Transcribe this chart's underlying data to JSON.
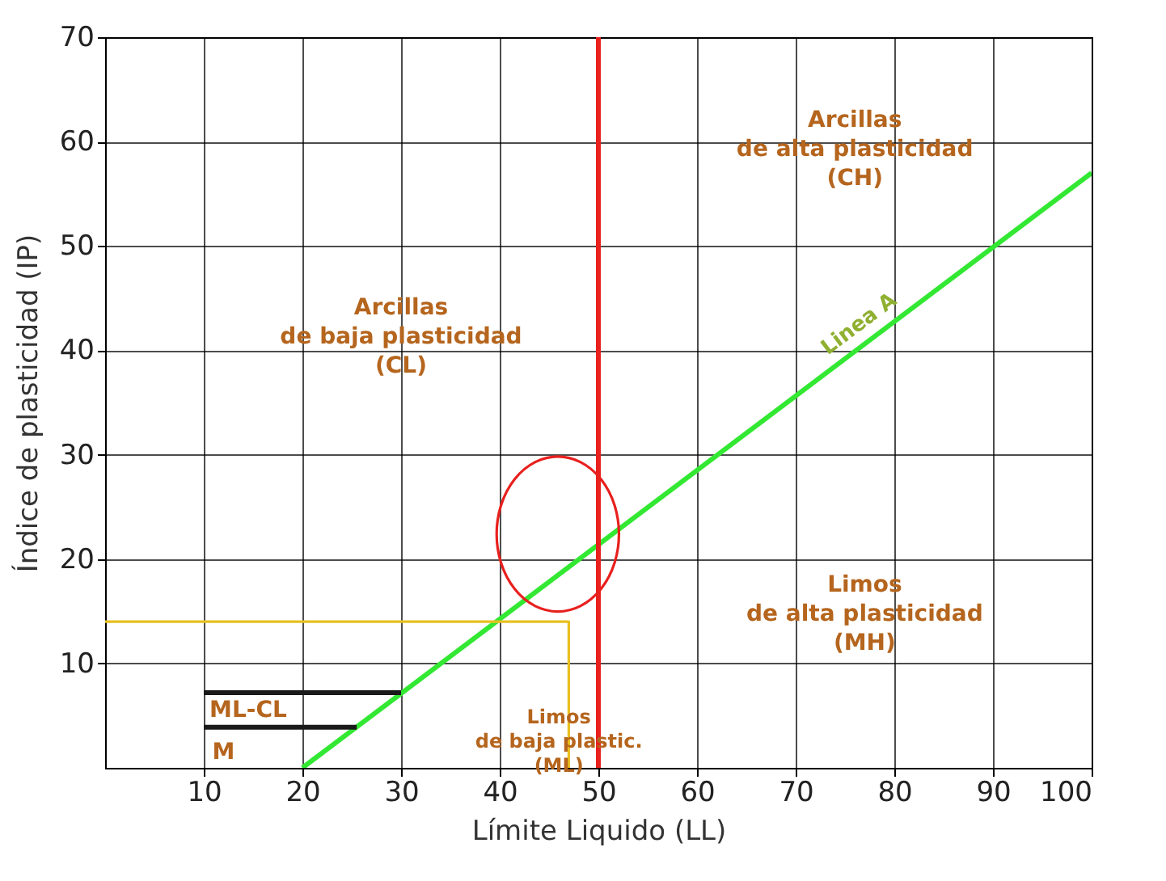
{
  "chart_data": {
    "type": "line",
    "xlabel": "Límite Liquido (LL)",
    "ylabel": "Índice de plasticidad (IP)",
    "xlim": [
      0,
      100
    ],
    "ylim": [
      0,
      70
    ],
    "xticks": [
      10,
      20,
      30,
      40,
      50,
      60,
      70,
      80,
      90,
      100
    ],
    "yticks": [
      10,
      20,
      30,
      40,
      50,
      60,
      70
    ],
    "grid": true,
    "line_style": "solid",
    "marker": "none",
    "series": [
      {
        "name": "Linea A",
        "color": "#33e833",
        "x": [
          20,
          100
        ],
        "values": [
          0,
          57
        ]
      },
      {
        "color": "#e8201e",
        "x": [
          50,
          50
        ],
        "values": [
          0,
          70
        ]
      },
      {
        "color": "#e8c020",
        "x": [
          0,
          47,
          47
        ],
        "values": [
          14,
          14,
          0
        ]
      },
      {
        "color": "#1a1a1a",
        "x": [
          10,
          30
        ],
        "values": [
          7.2,
          7.2
        ]
      },
      {
        "color": "#1a1a1a",
        "x": [
          10,
          25.5
        ],
        "values": [
          3.9,
          3.9
        ]
      }
    ],
    "annotations": [
      "Arcillas\nde alta plasticidad\n(CH)",
      "Arcillas\nde baja plasticidad\n(CL)",
      "Limos\nde alta plasticidad\n(MH)",
      "Limos\nde baja plastic.\n(ML)",
      "ML-CL",
      "M"
    ]
  }
}
